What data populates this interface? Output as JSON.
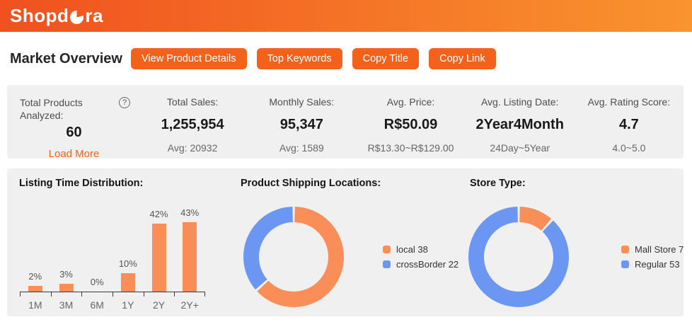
{
  "header": {
    "logo_prefix": "Shopd",
    "logo_suffix": "ra",
    "bg_gradient": [
      "#F0511F",
      "#F9942E"
    ]
  },
  "toolbar": {
    "title": "Market Overview",
    "buttons": [
      "View Product Details",
      "Top Keywords",
      "Copy Title",
      "Copy Link"
    ],
    "button_color": "#F4611B"
  },
  "stats": {
    "items": [
      {
        "label": "Total Products Analyzed:",
        "value": "60",
        "sub": "Load More",
        "has_help_icon": true
      },
      {
        "label": "Total Sales:",
        "value": "1,255,954",
        "sub": "Avg: 20932"
      },
      {
        "label": "Monthly Sales:",
        "value": "95,347",
        "sub": "Avg: 1589"
      },
      {
        "label": "Avg. Price:",
        "value": "R$50.09",
        "sub": "R$13.30~R$129.00"
      },
      {
        "label": "Avg. Listing Date:",
        "value": "2Year4Month",
        "sub": "24Day~5Year"
      },
      {
        "label": "Avg. Rating Score:",
        "value": "4.7",
        "sub": "4.0~5.0"
      }
    ]
  },
  "chart_data": [
    {
      "type": "bar",
      "title": "Listing Time Distribution:",
      "categories": [
        "1M",
        "3M",
        "6M",
        "1Y",
        "2Y",
        "2Y+"
      ],
      "values": [
        2,
        3,
        0,
        10,
        42,
        43
      ],
      "unit": "%",
      "bar_color": "#F98E58",
      "ylim": [
        0,
        45
      ],
      "grid": false
    },
    {
      "type": "pie",
      "title": "Product Shipping Locations:",
      "labels": [
        "local",
        "crossBorder"
      ],
      "values": [
        38,
        22
      ],
      "colors": [
        "#F98E58",
        "#6B96F2"
      ],
      "legend": [
        "local 38",
        "crossBorder 22"
      ],
      "legend_position": "right"
    },
    {
      "type": "pie",
      "title": "Store Type:",
      "labels": [
        "Mall Store",
        "Regular"
      ],
      "values": [
        7,
        53
      ],
      "colors": [
        "#F98E58",
        "#6B96F2"
      ],
      "legend": [
        "Mall Store 7",
        "Regular 53"
      ],
      "legend_position": "right"
    }
  ]
}
